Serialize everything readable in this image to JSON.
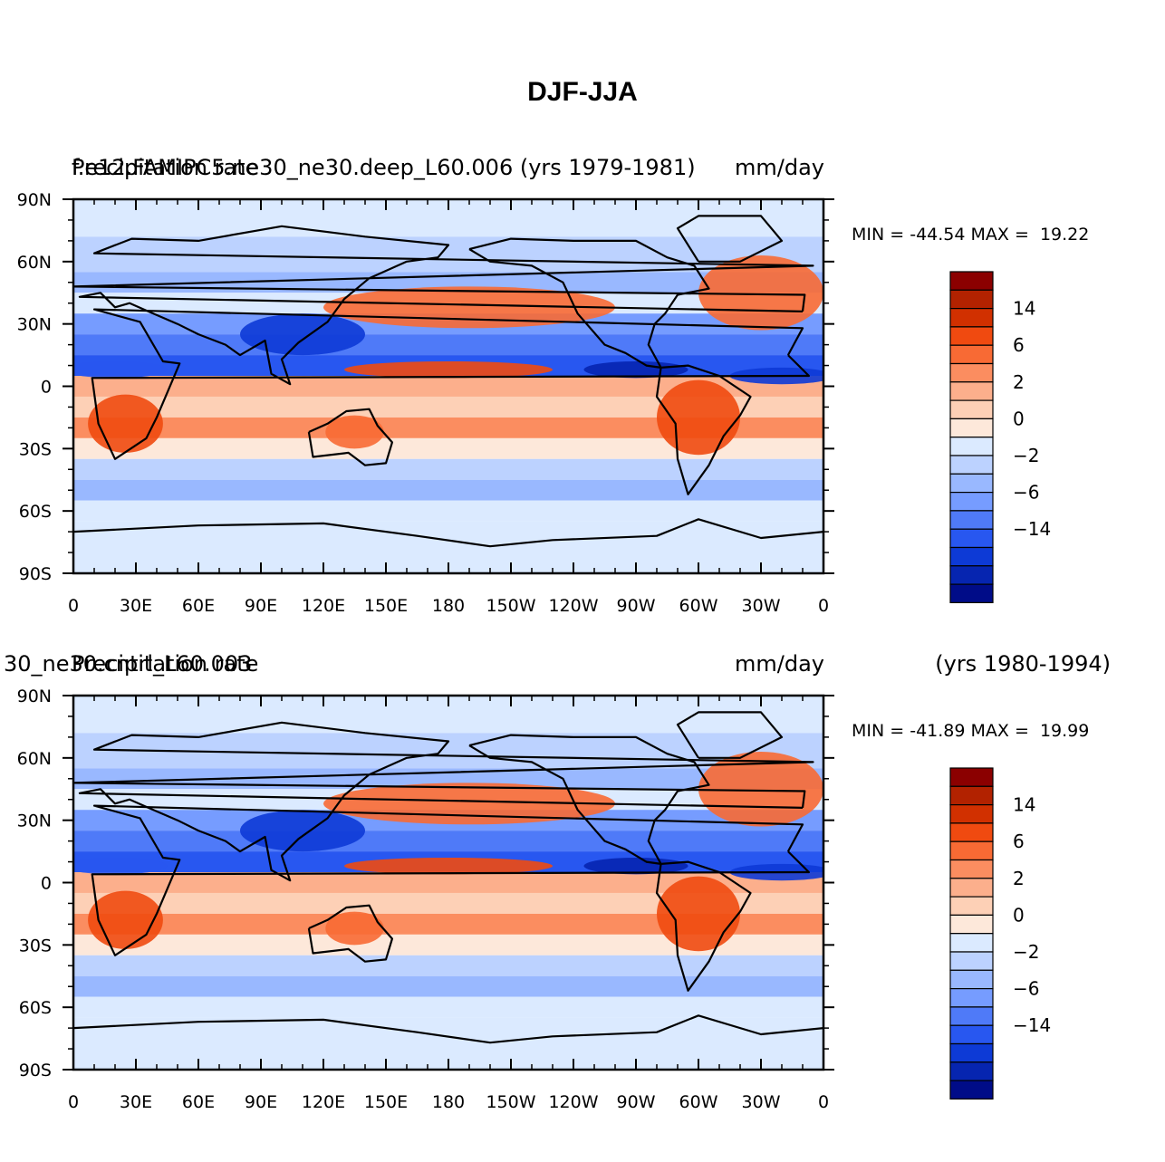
{
  "figure": {
    "title": "DJF-JJA"
  },
  "colors": {
    "frame": "#000000",
    "background": "#ffffff"
  },
  "chart_data": [
    {
      "type": "heatmap",
      "subtitle_left": "Precipitation rate",
      "subtitle_left_overprint": "f.e12.FAMIPC5.ne30_ne30.deep_L60.006 (yrs 1979-1981)",
      "units": "mm/day",
      "min_max": "MIN = -44.54 MAX =  19.22",
      "x_ticks": [
        "0",
        "30E",
        "60E",
        "90E",
        "120E",
        "150E",
        "180",
        "150W",
        "120W",
        "90W",
        "60W",
        "30W",
        "0"
      ],
      "y_ticks": [
        "90N",
        "60N",
        "30N",
        "0",
        "30S",
        "60S",
        "90S"
      ],
      "xlim": [
        0,
        360
      ],
      "ylim": [
        -90,
        90
      ]
    },
    {
      "type": "heatmap",
      "subtitle_left": "Precipitation rate",
      "subtitle_left_overprint": "30_ne30.cntrl_L60.003",
      "units": "mm/day",
      "years": "(yrs 1980-1994)",
      "min_max": "MIN = -41.89 MAX =  19.99",
      "x_ticks": [
        "0",
        "30E",
        "60E",
        "90E",
        "120E",
        "150E",
        "180",
        "150W",
        "120W",
        "90W",
        "60W",
        "30W",
        "0"
      ],
      "y_ticks": [
        "90N",
        "60N",
        "30N",
        "0",
        "30S",
        "60S",
        "90S"
      ],
      "xlim": [
        0,
        360
      ],
      "ylim": [
        -90,
        90
      ]
    }
  ],
  "colorbar": {
    "colors": [
      "#8b0000",
      "#b22200",
      "#d13000",
      "#f04a10",
      "#f86a34",
      "#fb8d60",
      "#fcaf8c",
      "#fdd0b6",
      "#fde8da",
      "#dbeaff",
      "#bcd2ff",
      "#99b8ff",
      "#769cff",
      "#4f7af8",
      "#2857f0",
      "#0d3ad6",
      "#0625b0",
      "#000c88"
    ],
    "labels": [
      "14",
      "6",
      "2",
      "0",
      "−2",
      "−6",
      "−14"
    ]
  }
}
